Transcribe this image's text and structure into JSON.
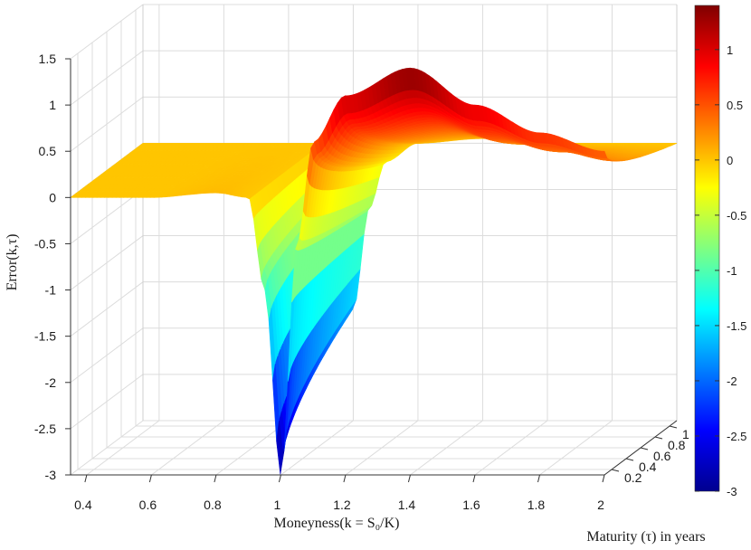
{
  "chart_data": {
    "type": "surface",
    "title": "",
    "xlabel": "Moneyness(k = S₀/K)",
    "ylabel": "Maturity (τ) in years",
    "zlabel": "Error(k,τ)",
    "xlim": [
      0.35,
      2.0
    ],
    "ylim": [
      0.1,
      1.1
    ],
    "zlim": [
      -3,
      1.5
    ],
    "x_ticks": [
      "0.4",
      "0.6",
      "0.8",
      "1",
      "1.2",
      "1.4",
      "1.6",
      "1.8",
      "2"
    ],
    "y_ticks": [
      "0.2",
      "0.4",
      "0.6",
      "0.8",
      "1"
    ],
    "z_ticks": [
      "-3",
      "-2.5",
      "-2",
      "-1.5",
      "-1",
      "-0.5",
      "0",
      "0.5",
      "1",
      "1.5"
    ],
    "colorbar": {
      "colormap": "jet",
      "range": [
        -3,
        1.4
      ],
      "ticks": [
        "-3",
        "-2.5",
        "-2",
        "-1.5",
        "-1",
        "-0.5",
        "0",
        "0.5",
        "1"
      ]
    },
    "grid": true,
    "surface_profile": {
      "x": [
        0.35,
        0.6,
        0.8,
        0.9,
        0.95,
        1.0,
        1.05,
        1.1,
        1.2,
        1.4,
        1.6,
        1.8,
        2.0
      ],
      "z_min_maturity": [
        0.0,
        0.0,
        0.05,
        0.0,
        -1.0,
        -3.0,
        -0.5,
        0.6,
        1.1,
        1.4,
        1.0,
        0.7,
        0.5
      ],
      "z_max_maturity": [
        0.0,
        0.0,
        0.0,
        0.0,
        -0.5,
        -1.8,
        -0.7,
        -0.2,
        0.0,
        0.05,
        0.0,
        0.0,
        0.0
      ]
    }
  }
}
